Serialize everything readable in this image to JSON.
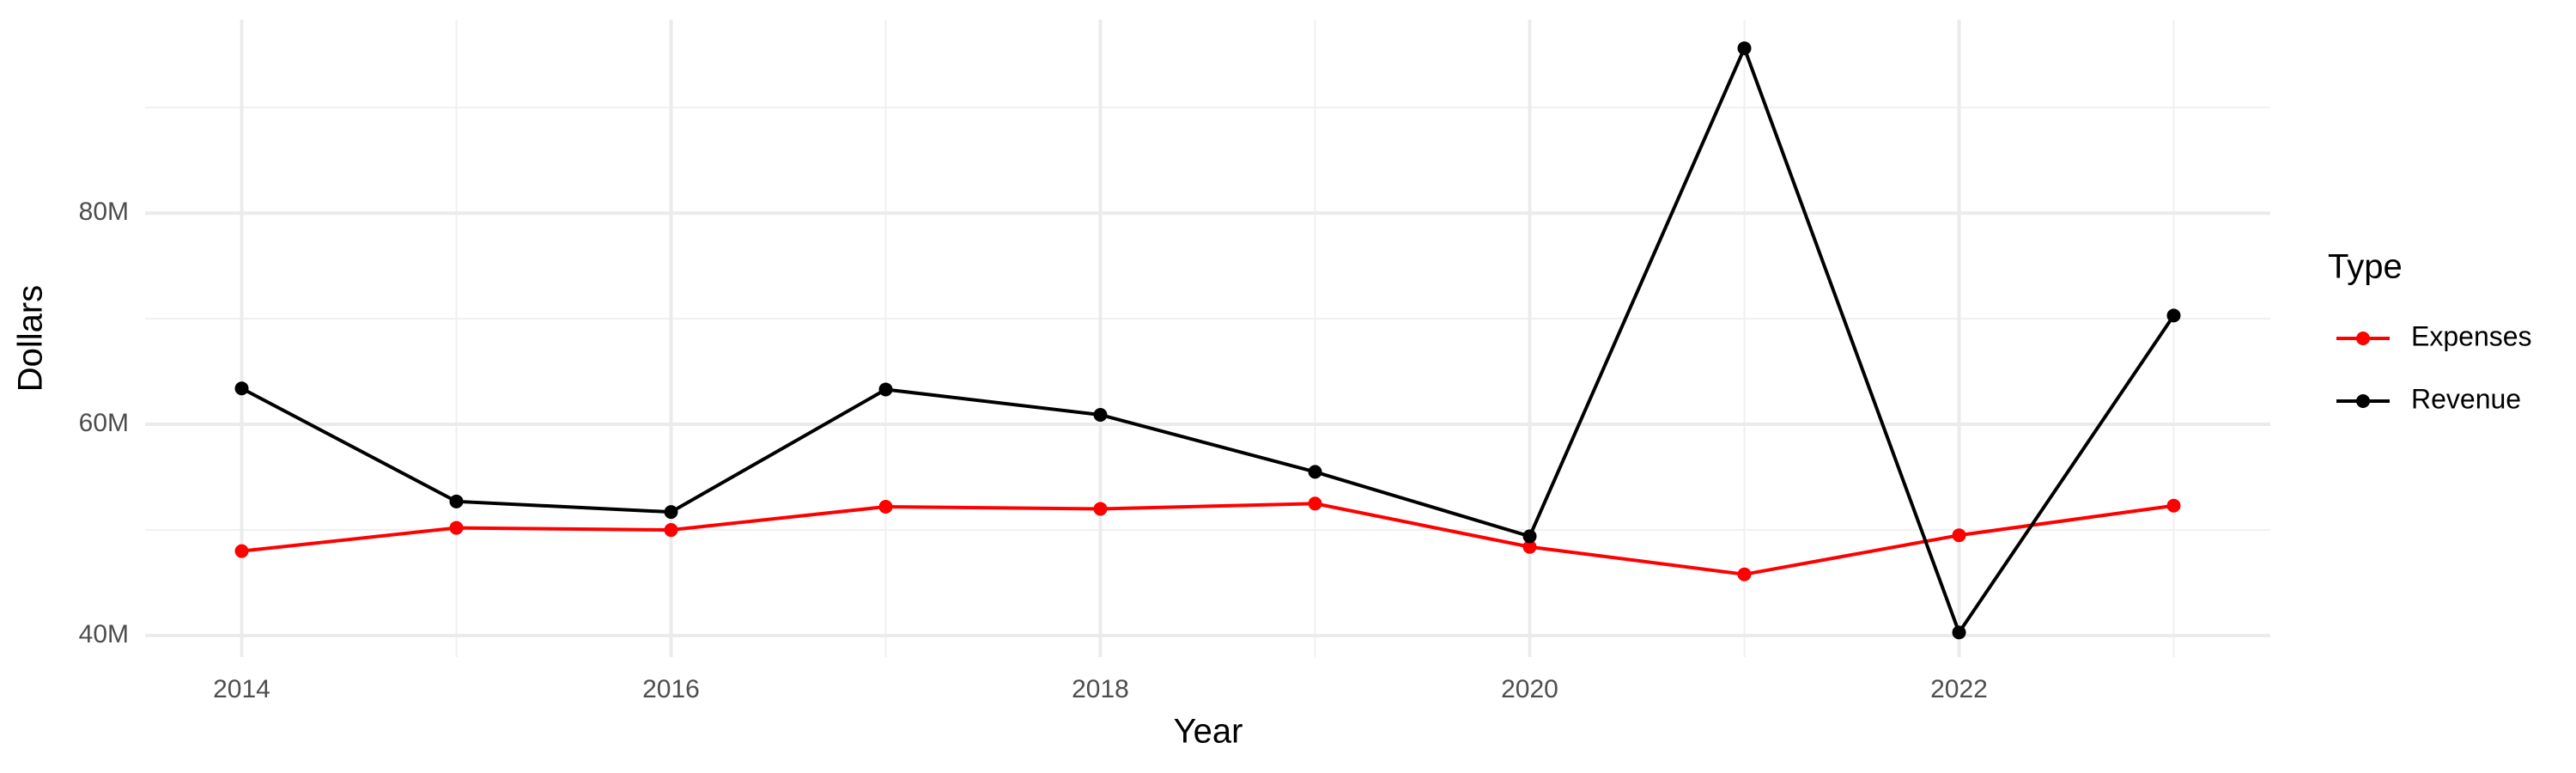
{
  "chart_data": {
    "type": "line",
    "x_label": "Year",
    "y_label": "Dollars",
    "legend_title": "Type",
    "x": [
      2014,
      2015,
      2016,
      2017,
      2018,
      2019,
      2020,
      2021,
      2022,
      2023
    ],
    "series": [
      {
        "name": "Expenses",
        "color": "#ff0000",
        "values": [
          48000000,
          50200000,
          50000000,
          52200000,
          52000000,
          52500000,
          48400000,
          45800000,
          49500000,
          52300000
        ]
      },
      {
        "name": "Revenue",
        "color": "#000000",
        "values": [
          63400000,
          52700000,
          51700000,
          63300000,
          60900000,
          55500000,
          49400000,
          95600000,
          40300000,
          70300000
        ]
      }
    ],
    "xlim": [
      2013.55,
      2023.45
    ],
    "xticks": [
      2014,
      2016,
      2018,
      2020,
      2022
    ],
    "ylim": [
      37970000,
      98300000
    ],
    "yticks": [
      {
        "value": 40000000,
        "label": "40M"
      },
      {
        "value": 60000000,
        "label": "60M"
      },
      {
        "value": 80000000,
        "label": "80M"
      }
    ],
    "grid": true,
    "legend_position": "right"
  }
}
